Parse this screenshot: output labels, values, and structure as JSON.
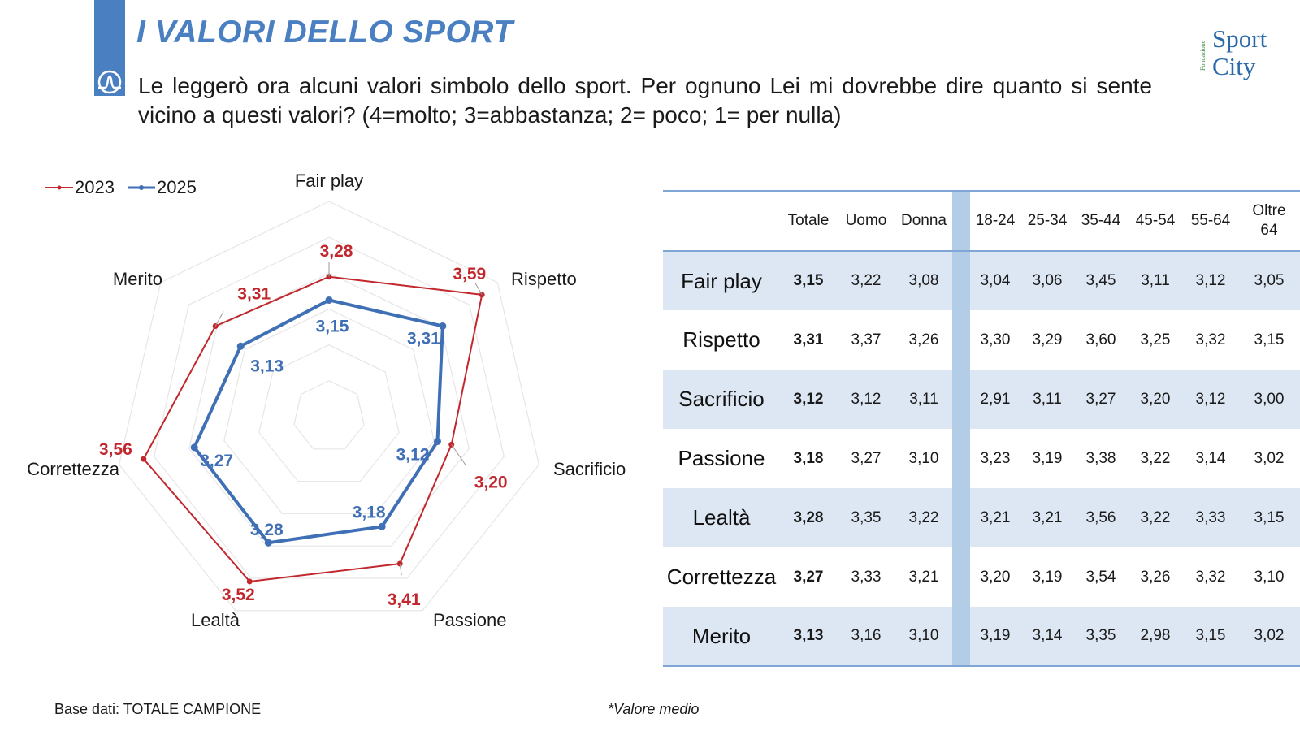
{
  "header": {
    "title": "I VALORI DELLO SPORT",
    "question": "Le leggerò ora alcuni valori simbolo dello sport. Per ognuno Lei mi dovrebbe dire quanto si sente vicino a questi valori? (4=molto; 3=abbastanza; 2= poco; 1= per nulla)"
  },
  "logo": {
    "small_text": "Fondazione",
    "word1": "Sport",
    "word2": "City"
  },
  "colors": {
    "accent": "#4a7fc1",
    "series_2023": "#c1272d",
    "series_2025": "#3f6fb5",
    "table_shade": "#dde7f3"
  },
  "legend": {
    "s2023": "2023",
    "s2025": "2025"
  },
  "chart_data": {
    "type": "radar",
    "axes": [
      "Fair play",
      "Rispetto",
      "Sacrificio",
      "Passione",
      "Lealtà",
      "Correttezza",
      "Merito"
    ],
    "series": [
      {
        "name": "2023",
        "values": [
          3.28,
          3.59,
          3.2,
          3.41,
          3.52,
          3.56,
          3.31
        ],
        "labels": [
          "3,28",
          "3,59",
          "3,20",
          "3,41",
          "3,52",
          "3,56",
          "3,31"
        ]
      },
      {
        "name": "2025",
        "values": [
          3.15,
          3.31,
          3.12,
          3.18,
          3.28,
          3.27,
          3.13
        ],
        "labels": [
          "3,15",
          "3,31",
          "3,12",
          "3,18",
          "3,28",
          "3,27",
          "3,13"
        ]
      }
    ]
  },
  "table": {
    "columns": [
      "Totale",
      "Uomo",
      "Donna",
      "18-24",
      "25-34",
      "35-44",
      "45-54",
      "55-64",
      "Oltre 64"
    ],
    "rows": [
      {
        "label": "Fair play",
        "values": [
          "3,15",
          "3,22",
          "3,08",
          "3,04",
          "3,06",
          "3,45",
          "3,11",
          "3,12",
          "3,05"
        ]
      },
      {
        "label": "Rispetto",
        "values": [
          "3,31",
          "3,37",
          "3,26",
          "3,30",
          "3,29",
          "3,60",
          "3,25",
          "3,32",
          "3,15"
        ]
      },
      {
        "label": "Sacrificio",
        "values": [
          "3,12",
          "3,12",
          "3,11",
          "2,91",
          "3,11",
          "3,27",
          "3,20",
          "3,12",
          "3,00"
        ]
      },
      {
        "label": "Passione",
        "values": [
          "3,18",
          "3,27",
          "3,10",
          "3,23",
          "3,19",
          "3,38",
          "3,22",
          "3,14",
          "3,02"
        ]
      },
      {
        "label": "Lealtà",
        "values": [
          "3,28",
          "3,35",
          "3,22",
          "3,21",
          "3,21",
          "3,56",
          "3,22",
          "3,33",
          "3,15"
        ]
      },
      {
        "label": "Correttezza",
        "values": [
          "3,27",
          "3,33",
          "3,21",
          "3,20",
          "3,19",
          "3,54",
          "3,26",
          "3,32",
          "3,10"
        ]
      },
      {
        "label": "Merito",
        "values": [
          "3,13",
          "3,16",
          "3,10",
          "3,19",
          "3,14",
          "3,35",
          "2,98",
          "3,15",
          "3,02"
        ]
      }
    ]
  },
  "footer": {
    "base": "Base dati: TOTALE CAMPIONE",
    "note": "*Valore medio"
  }
}
